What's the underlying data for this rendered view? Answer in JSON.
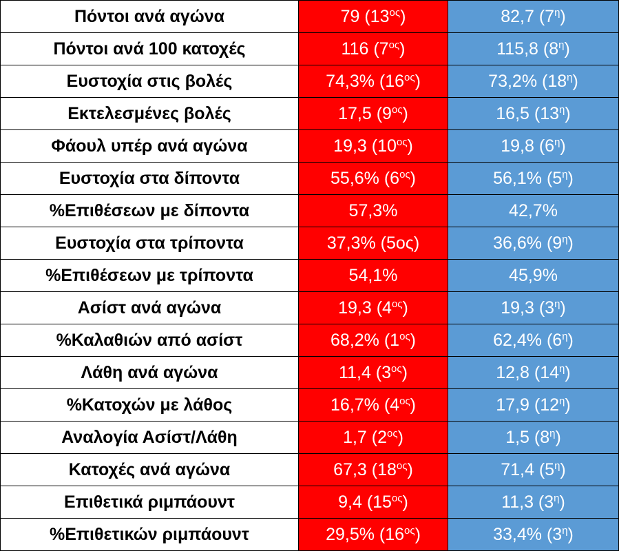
{
  "table": {
    "rows": [
      [
        "Πόντοι ανά αγώνα",
        {
          "text": "79 (13",
          "sup": "ος",
          "tail": ")"
        },
        {
          "text": "82,7 (7",
          "sup": "η",
          "tail": ")"
        }
      ],
      [
        "Πόντοι ανά 100 κατοχές",
        {
          "text": "116 (7",
          "sup": "ος",
          "tail": ")"
        },
        {
          "text": "115,8 (8",
          "sup": "η",
          "tail": ")"
        }
      ],
      [
        "Ευστοχία στις βολές",
        {
          "text": "74,3% (16",
          "sup": "ος",
          "tail": ")"
        },
        {
          "text": "73,2% (18",
          "sup": "η",
          "tail": ")"
        }
      ],
      [
        "Εκτελεσμένες βολές",
        {
          "text": "17,5 (9",
          "sup": "ος",
          "tail": ")"
        },
        {
          "text": "16,5 (13",
          "sup": "η",
          "tail": ")"
        }
      ],
      [
        "Φάουλ υπέρ ανά αγώνα",
        {
          "text": "19,3 (10",
          "sup": "ος",
          "tail": ")"
        },
        {
          "text": "19,8 (6",
          "sup": "η",
          "tail": ")"
        }
      ],
      [
        "Ευστοχία στα δίποντα",
        {
          "text": "55,6% (6",
          "sup": "ος",
          "tail": ")"
        },
        {
          "text": "56,1% (5",
          "sup": "η",
          "tail": ")"
        }
      ],
      [
        "%Επιθέσεων με δίποντα",
        "57,3%",
        "42,7%"
      ],
      [
        "Ευστοχία στα τρίποντα",
        "37,3% (5ος)",
        {
          "text": "36,6% (9",
          "sup": "η",
          "tail": ")"
        }
      ],
      [
        "%Επιθέσεων με τρίποντα",
        "54,1%",
        "45,9%"
      ],
      [
        "Ασίστ ανά αγώνα",
        {
          "text": "19,3 (4",
          "sup": "ος",
          "tail": ")"
        },
        {
          "text": "19,3 (3",
          "sup": "η",
          "tail": ")"
        }
      ],
      [
        "%Καλαθιών από ασίστ",
        {
          "text": "68,2% (1",
          "sup": "ος",
          "tail": ")"
        },
        {
          "text": "62,4% (6",
          "sup": "η",
          "tail": ")"
        }
      ],
      [
        "Λάθη ανά αγώνα",
        {
          "text": "11,4 (3",
          "sup": "ος",
          "tail": ")"
        },
        {
          "text": "12,8 (14",
          "sup": "η",
          "tail": ")"
        }
      ],
      [
        "%Κατοχών με λάθος",
        {
          "text": "16,7% (4",
          "sup": "ος",
          "tail": ")"
        },
        {
          "text": "17,9 (12",
          "sup": "η",
          "tail": ")"
        }
      ],
      [
        "Αναλογία Ασίστ/Λάθη",
        {
          "text": "1,7 (2",
          "sup": "ος",
          "tail": ")"
        },
        {
          "text": "1,5 (8",
          "sup": "η",
          "tail": ")"
        }
      ],
      [
        "Κατοχές ανά αγώνα",
        {
          "text": "67,3 (18",
          "sup": "ος",
          "tail": ")"
        },
        {
          "text": "71,4 (5",
          "sup": "η",
          "tail": ")"
        }
      ],
      [
        "Επιθετικά ριμπάουντ",
        {
          "text": "9,4 (15",
          "sup": "ος",
          "tail": ")"
        },
        {
          "text": "11,3 (3",
          "sup": "η",
          "tail": ")"
        }
      ],
      [
        "%Επιθετικών ριμπάουντ",
        {
          "text": "29,5% (16",
          "sup": "ος",
          "tail": ")"
        },
        {
          "text": "33,4% (3",
          "sup": "η",
          "tail": ")"
        }
      ]
    ]
  }
}
